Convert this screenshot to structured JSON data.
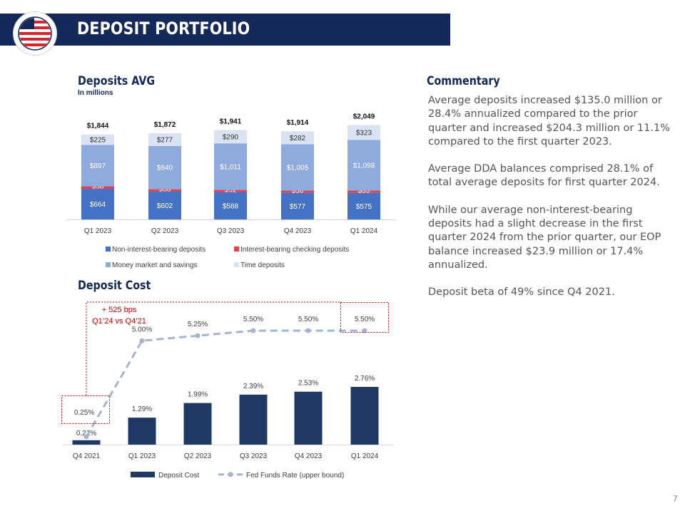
{
  "header": {
    "title": "DEPOSIT PORTFOLIO"
  },
  "deposits_section": {
    "title": "Deposits AVG",
    "subtitle": "In millions"
  },
  "cost_section": {
    "title": "Deposit Cost"
  },
  "commentary": {
    "title": "Commentary",
    "paragraphs": [
      "Average deposits increased $135.0 million or 28.4% annualized compared to the prior quarter and increased $204.3 million or 11.1% compared to the first quarter 2023.",
      "Average DDA balances comprised 28.1% of total average deposits for first quarter 2024.",
      "While our average non-interest-bearing deposits had a slight decrease in the first quarter 2024 from the prior quarter, our EOP balance increased $23.9 million or 17.4% annualized.",
      "Deposit beta of 49% since Q4 2021."
    ]
  },
  "page_number": "7",
  "colors": {
    "navy": "#14285a",
    "nib": "#4472c4",
    "ibc": "#e0424f",
    "mms": "#8faadc",
    "time": "#dae3f3",
    "cost": "#203864",
    "fed": "#a5b4d0",
    "annot": "#c00000"
  },
  "chart_data": [
    {
      "type": "bar",
      "stacked": true,
      "title": "Deposits AVG",
      "subtitle": "In millions",
      "categories": [
        "Q1 2023",
        "Q2 2023",
        "Q3 2023",
        "Q4 2023",
        "Q1 2024"
      ],
      "series": [
        {
          "name": "Non-interest-bearing deposits",
          "values": [
            664,
            602,
            588,
            577,
            575
          ],
          "labels": [
            "$664",
            "$602",
            "$588",
            "$577",
            "$575"
          ],
          "color": "#4472c4"
        },
        {
          "name": "Interest-bearing checking deposits",
          "values": [
            58,
            53,
            52,
            50,
            53
          ],
          "labels": [
            "$58",
            "$53",
            "$52",
            "$50",
            "$53"
          ],
          "color": "#e0424f"
        },
        {
          "name": "Money market and savings",
          "values": [
            897,
            940,
            1011,
            1005,
            1098
          ],
          "labels": [
            "$897",
            "$940",
            "$1,011",
            "$1,005",
            "$1,098"
          ],
          "color": "#8faadc"
        },
        {
          "name": "Time deposits",
          "values": [
            225,
            277,
            290,
            282,
            323
          ],
          "labels": [
            "$225",
            "$277",
            "$290",
            "$282",
            "$323"
          ],
          "color": "#dae3f3"
        }
      ],
      "totals": [
        1844,
        1872,
        1941,
        1914,
        2049
      ],
      "total_labels": [
        "$1,844",
        "$1,872",
        "$1,941",
        "$1,914",
        "$2,049"
      ],
      "legend": "bottom",
      "grid": false
    },
    {
      "type": "bar",
      "title": "Deposit Cost",
      "categories": [
        "Q4 2021",
        "Q1 2023",
        "Q2 2023",
        "Q3 2023",
        "Q4 2023",
        "Q1 2024"
      ],
      "series": [
        {
          "name": "Deposit Cost",
          "kind": "bar",
          "values": [
            0.21,
            1.29,
            1.99,
            2.39,
            2.53,
            2.76
          ],
          "labels": [
            "0.21%",
            "1.29%",
            "1.99%",
            "2.39%",
            "2.53%",
            "2.76%"
          ],
          "color": "#203864"
        },
        {
          "name": "Fed Funds Rate (upper bound)",
          "kind": "line",
          "style": "dashed",
          "values": [
            0.25,
            5.0,
            5.25,
            5.5,
            5.5,
            5.5
          ],
          "labels": [
            "0.25%",
            "5.00%",
            "5.25%",
            "5.50%",
            "5.50%",
            "5.50%"
          ],
          "color": "#a5b4d0"
        }
      ],
      "annotation": {
        "line1": "+ 525 bps",
        "line2": "Q1’24 vs Q4’21"
      },
      "legend": "bottom",
      "grid": false
    }
  ]
}
